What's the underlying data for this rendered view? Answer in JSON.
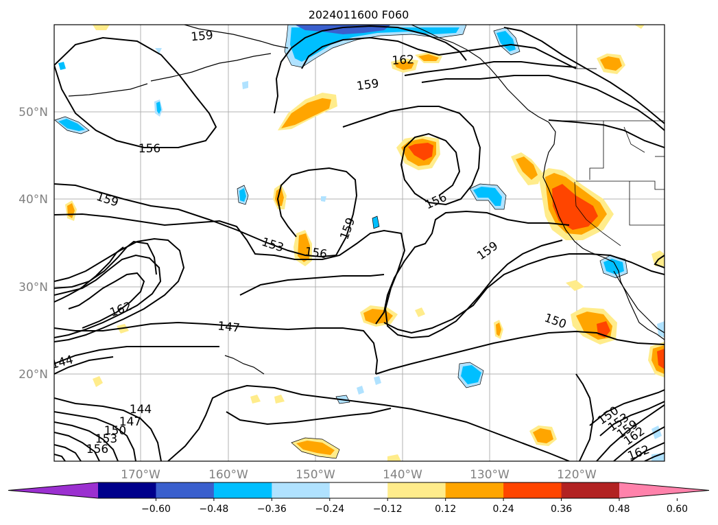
{
  "title": "2024011600 F060",
  "lat_labels": [
    "50°N",
    "40°N",
    "30°N",
    "20°N"
  ],
  "lon_labels": [
    "170°W",
    "160°W",
    "150°W",
    "140°W",
    "130°W",
    "120°W"
  ],
  "contour_labels": [
    "159",
    "162",
    "159",
    "156",
    "159",
    "159",
    "156",
    "153",
    "156",
    "159",
    "162",
    "147",
    "150",
    "144",
    "144",
    "147",
    "150",
    "153",
    "156",
    "150",
    "153",
    "159",
    "162",
    "162"
  ],
  "colorbar": {
    "tick_labels": [
      "−0.60",
      "−0.48",
      "−0.36",
      "−0.24",
      "−0.12",
      "0.12",
      "0.24",
      "0.36",
      "0.48",
      "0.60"
    ],
    "colors": [
      "#9b30d0",
      "#00008b",
      "#3a5fcd",
      "#00bfff",
      "#b0e2ff",
      "#ffffff",
      "#ffec8b",
      "#ffa500",
      "#ff4500",
      "#b22222",
      "#ff82ab"
    ]
  },
  "legend_colors": {
    "positive_light": "#ffec8b",
    "positive_mid": "#ffa500",
    "positive_strong": "#ff4500",
    "negative_light": "#b0e2ff",
    "negative_mid": "#00bfff",
    "negative_strong": "#3a5fcd"
  }
}
